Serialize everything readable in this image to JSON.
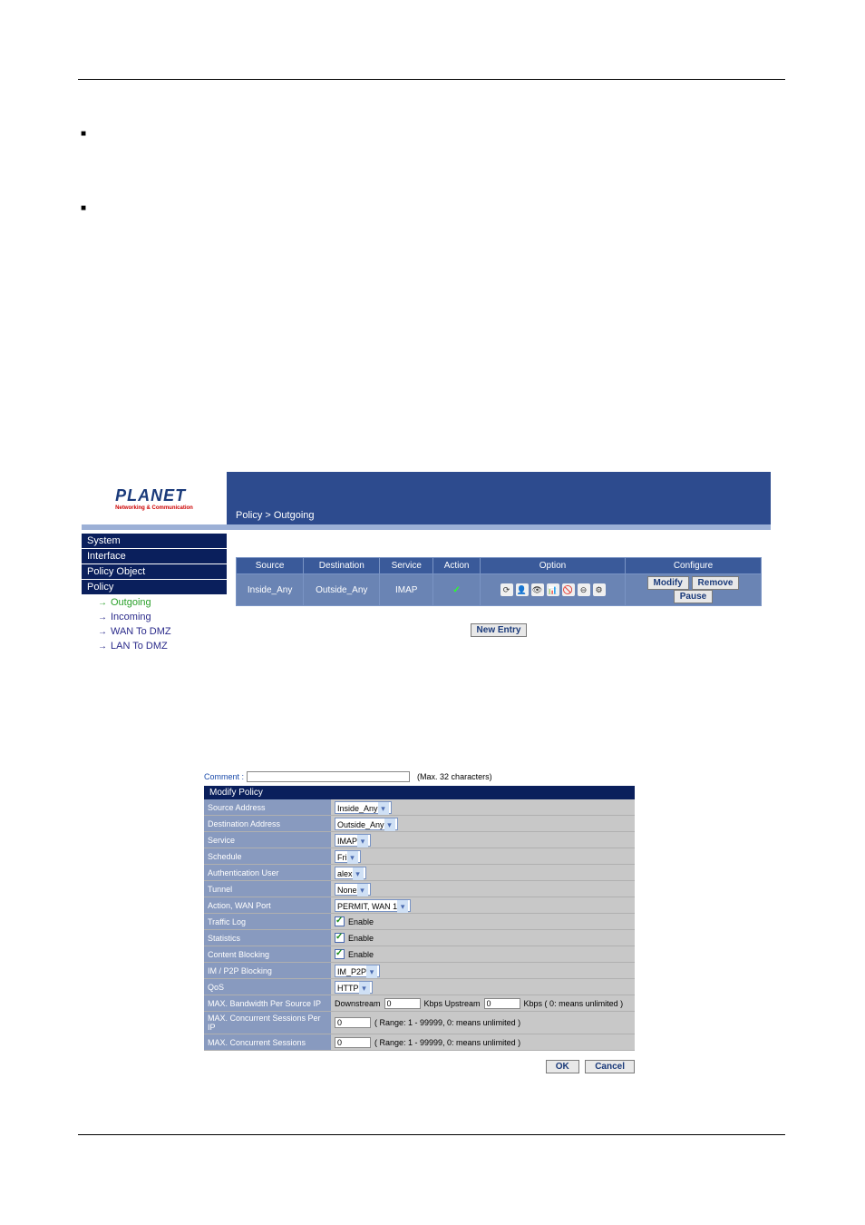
{
  "breadcrumb": "Policy > Outgoing",
  "logo": {
    "text": "PLANET",
    "sub": "Networking & Communication"
  },
  "nav": {
    "headers": [
      "System",
      "Interface",
      "Policy Object",
      "Policy"
    ],
    "subs": [
      "Outgoing",
      "Incoming",
      "WAN To DMZ",
      "LAN To DMZ"
    ]
  },
  "policy_table": {
    "headers": [
      "Source",
      "Destination",
      "Service",
      "Action",
      "Option",
      "Configure"
    ],
    "row": {
      "source": "Inside_Any",
      "destination": "Outside_Any",
      "service": "IMAP",
      "action_icon": "✓",
      "option_icons": [
        "⟳",
        "👤",
        "👁",
        "📊",
        "🚫",
        "⊖",
        "⚙"
      ],
      "configure": [
        "Modify",
        "Remove",
        "Pause"
      ]
    },
    "new_entry": "New Entry"
  },
  "form": {
    "comment_label": "Comment :",
    "comment_value": "",
    "comment_hint": "(Max. 32 characters)",
    "title": "Modify Policy",
    "rows": [
      {
        "label": "Source Address",
        "type": "select",
        "value": "Inside_Any"
      },
      {
        "label": "Destination Address",
        "type": "select",
        "value": "Outside_Any"
      },
      {
        "label": "Service",
        "type": "select",
        "value": "IMAP"
      },
      {
        "label": "Schedule",
        "type": "select",
        "value": "Fri"
      },
      {
        "label": "Authentication User",
        "type": "select",
        "value": "alex"
      },
      {
        "label": "Tunnel",
        "type": "select",
        "value": "None"
      },
      {
        "label": "Action, WAN Port",
        "type": "select",
        "value": "PERMIT, WAN 1"
      },
      {
        "label": "Traffic Log",
        "type": "check",
        "value": "Enable",
        "checked": true
      },
      {
        "label": "Statistics",
        "type": "check",
        "value": "Enable",
        "checked": true
      },
      {
        "label": "Content Blocking",
        "type": "check",
        "value": "Enable",
        "checked": true
      },
      {
        "label": "IM / P2P Blocking",
        "type": "select",
        "value": "IM_P2P"
      },
      {
        "label": "QoS",
        "type": "select",
        "value": "HTTP"
      },
      {
        "label": "MAX. Bandwidth Per Source IP",
        "type": "bw",
        "down_label": "Downstream",
        "down": "0",
        "up_label": "Kbps Upstream",
        "up": "0",
        "hint": "Kbps ( 0: means unlimited )"
      },
      {
        "label": "MAX. Concurrent Sessions Per IP",
        "type": "num",
        "value": "0",
        "hint": "( Range: 1 - 99999, 0: means unlimited )"
      },
      {
        "label": "MAX. Concurrent Sessions",
        "type": "num",
        "value": "0",
        "hint": "( Range: 1 - 99999, 0: means unlimited )"
      }
    ],
    "ok": "OK",
    "cancel": "Cancel"
  }
}
